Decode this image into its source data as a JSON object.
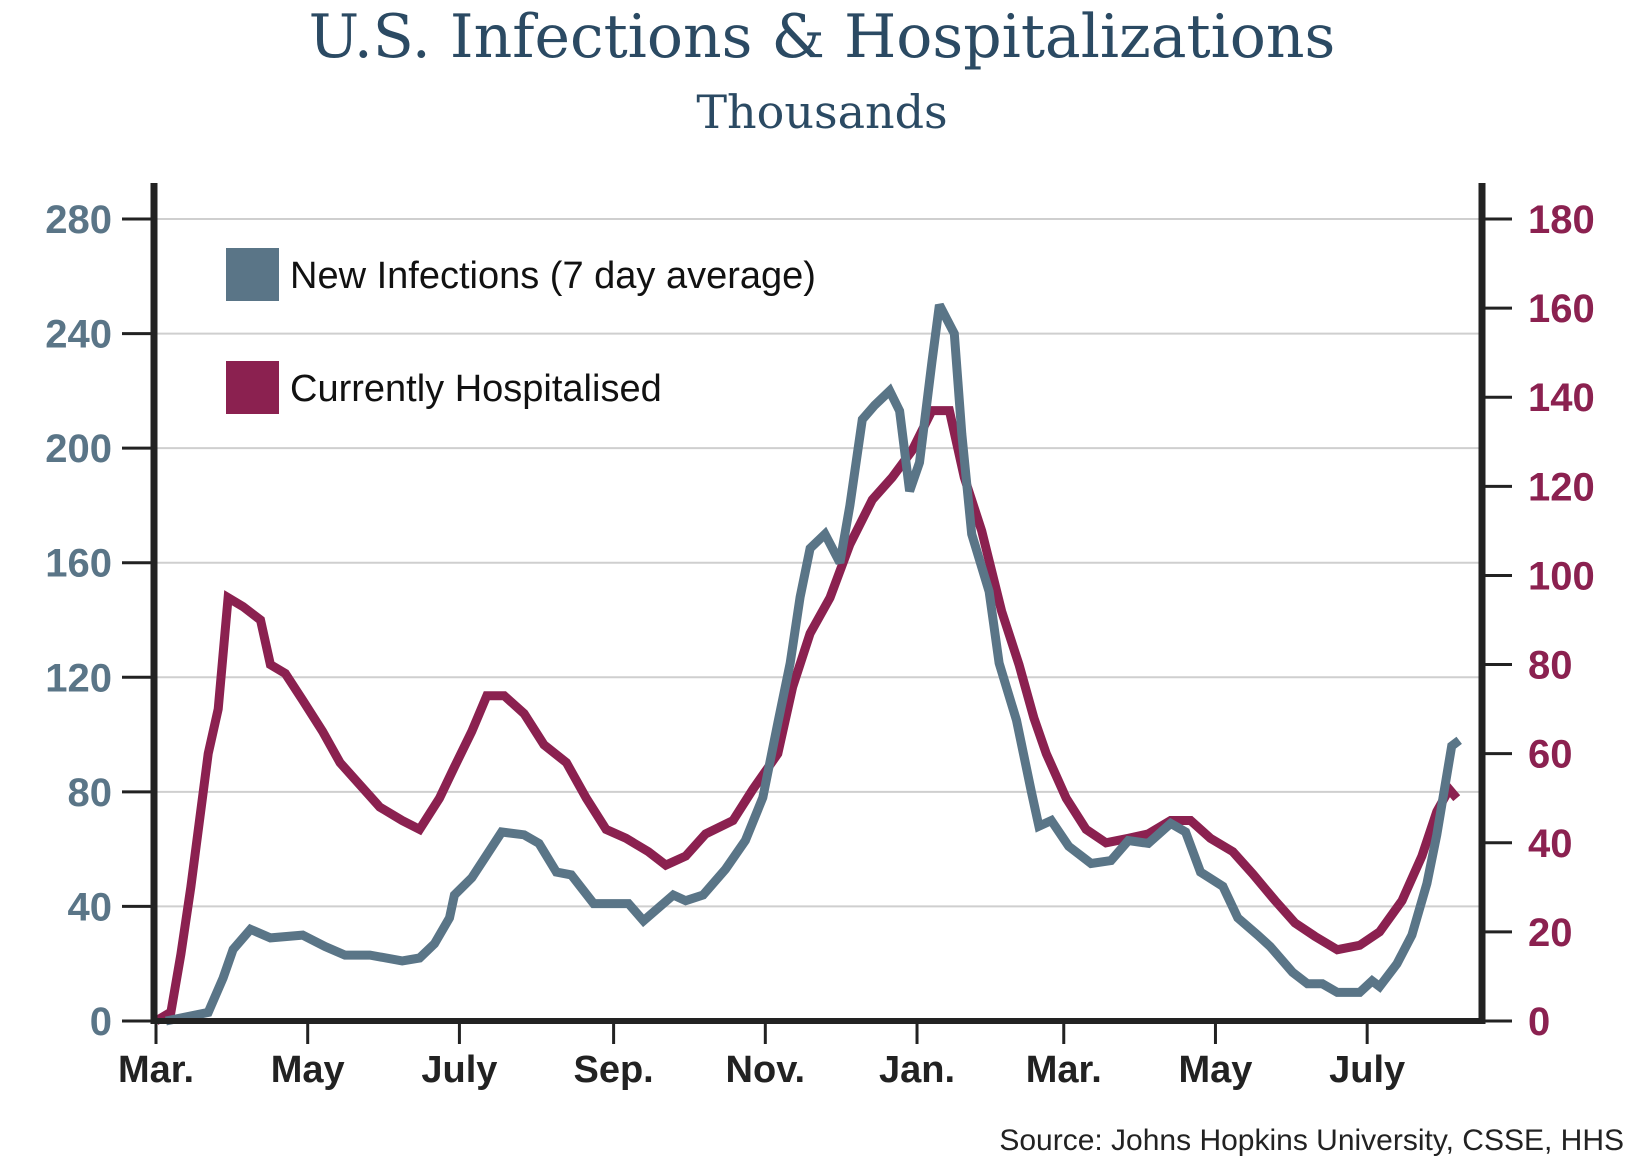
{
  "chart_data": {
    "type": "line",
    "title": "U.S. Infections & Hospitalizations",
    "subtitle": "Thousands",
    "source": "Source: Johns Hopkins University, CSSE, HHS",
    "x_ticks": [
      {
        "label": "Mar.",
        "date": "2020-03-01"
      },
      {
        "label": "May",
        "date": "2020-05-01"
      },
      {
        "label": "July",
        "date": "2020-07-01"
      },
      {
        "label": "Sep.",
        "date": "2020-09-01"
      },
      {
        "label": "Nov.",
        "date": "2020-11-01"
      },
      {
        "label": "Jan.",
        "date": "2021-01-01"
      },
      {
        "label": "Mar.",
        "date": "2021-03-01"
      },
      {
        "label": "May",
        "date": "2021-05-01"
      },
      {
        "label": "July",
        "date": "2021-07-01"
      }
    ],
    "y_left": {
      "ylim": [
        0,
        280
      ],
      "ticks": [
        "0",
        "40",
        "80",
        "120",
        "160",
        "200",
        "240",
        "280"
      ],
      "color": "#5a7587"
    },
    "y_right": {
      "ylim": [
        0,
        180
      ],
      "ticks": [
        "0",
        "20",
        "40",
        "60",
        "80",
        "100",
        "120",
        "140",
        "160",
        "180"
      ],
      "color": "#8b2150"
    },
    "grid": true,
    "legend_position": "top-left",
    "series": [
      {
        "name": "New Infections (7 day average)",
        "axis": "left",
        "color": "#5a7587",
        "points": [
          [
            "2020-03-05",
            0
          ],
          [
            "2020-03-22",
            3
          ],
          [
            "2020-03-28",
            15
          ],
          [
            "2020-04-01",
            25
          ],
          [
            "2020-04-08",
            32
          ],
          [
            "2020-04-16",
            29
          ],
          [
            "2020-04-29",
            30
          ],
          [
            "2020-05-08",
            26
          ],
          [
            "2020-05-16",
            23
          ],
          [
            "2020-05-26",
            23
          ],
          [
            "2020-06-08",
            21
          ],
          [
            "2020-06-15",
            22
          ],
          [
            "2020-06-21",
            27
          ],
          [
            "2020-06-27",
            36
          ],
          [
            "2020-06-29",
            44
          ],
          [
            "2020-07-06",
            50
          ],
          [
            "2020-07-12",
            58
          ],
          [
            "2020-07-18",
            66
          ],
          [
            "2020-07-27",
            65
          ],
          [
            "2020-08-02",
            62
          ],
          [
            "2020-08-09",
            52
          ],
          [
            "2020-08-15",
            51
          ],
          [
            "2020-08-24",
            41
          ],
          [
            "2020-09-07",
            41
          ],
          [
            "2020-09-13",
            35
          ],
          [
            "2020-09-25",
            44
          ],
          [
            "2020-09-30",
            42
          ],
          [
            "2020-10-07",
            44
          ],
          [
            "2020-10-16",
            53
          ],
          [
            "2020-10-24",
            63
          ],
          [
            "2020-10-31",
            78
          ],
          [
            "2020-11-06",
            104
          ],
          [
            "2020-11-11",
            125
          ],
          [
            "2020-11-15",
            148
          ],
          [
            "2020-11-19",
            165
          ],
          [
            "2020-11-25",
            170
          ],
          [
            "2020-12-01",
            160
          ],
          [
            "2020-12-05",
            180
          ],
          [
            "2020-12-10",
            210
          ],
          [
            "2020-12-15",
            215
          ],
          [
            "2020-12-21",
            220
          ],
          [
            "2020-12-25",
            213
          ],
          [
            "2020-12-29",
            185
          ],
          [
            "2021-01-02",
            195
          ],
          [
            "2021-01-07",
            230
          ],
          [
            "2021-01-10",
            250
          ],
          [
            "2021-01-16",
            240
          ],
          [
            "2021-01-19",
            205
          ],
          [
            "2021-01-23",
            170
          ],
          [
            "2021-01-30",
            150
          ],
          [
            "2021-02-03",
            125
          ],
          [
            "2021-02-10",
            105
          ],
          [
            "2021-02-16",
            80
          ],
          [
            "2021-02-19",
            68
          ],
          [
            "2021-02-24",
            70
          ],
          [
            "2021-03-03",
            61
          ],
          [
            "2021-03-12",
            55
          ],
          [
            "2021-03-20",
            56
          ],
          [
            "2021-03-27",
            63
          ],
          [
            "2021-04-04",
            62
          ],
          [
            "2021-04-13",
            69
          ],
          [
            "2021-04-19",
            66
          ],
          [
            "2021-04-25",
            52
          ],
          [
            "2021-05-04",
            47
          ],
          [
            "2021-05-10",
            36
          ],
          [
            "2021-05-18",
            30
          ],
          [
            "2021-05-23",
            26
          ],
          [
            "2021-06-01",
            17
          ],
          [
            "2021-06-07",
            13
          ],
          [
            "2021-06-13",
            13
          ],
          [
            "2021-06-19",
            10
          ],
          [
            "2021-06-28",
            10
          ],
          [
            "2021-07-03",
            14
          ],
          [
            "2021-07-06",
            12
          ],
          [
            "2021-07-13",
            20
          ],
          [
            "2021-07-19",
            30
          ],
          [
            "2021-07-25",
            48
          ],
          [
            "2021-07-29",
            65
          ],
          [
            "2021-08-04",
            96
          ],
          [
            "2021-08-07",
            98
          ]
        ]
      },
      {
        "name": "Currently Hospitalised",
        "axis": "right",
        "color": "#8b2150",
        "points": [
          [
            "2020-03-01",
            0
          ],
          [
            "2020-03-07",
            2
          ],
          [
            "2020-03-11",
            15
          ],
          [
            "2020-03-15",
            30
          ],
          [
            "2020-03-22",
            60
          ],
          [
            "2020-03-26",
            70
          ],
          [
            "2020-03-30",
            95
          ],
          [
            "2020-04-05",
            93
          ],
          [
            "2020-04-12",
            90
          ],
          [
            "2020-04-16",
            80
          ],
          [
            "2020-04-22",
            78
          ],
          [
            "2020-04-29",
            72
          ],
          [
            "2020-05-07",
            65
          ],
          [
            "2020-05-14",
            58
          ],
          [
            "2020-05-22",
            53
          ],
          [
            "2020-05-30",
            48
          ],
          [
            "2020-06-08",
            45
          ],
          [
            "2020-06-15",
            43
          ],
          [
            "2020-06-23",
            50
          ],
          [
            "2020-06-29",
            57
          ],
          [
            "2020-07-06",
            65
          ],
          [
            "2020-07-12",
            73
          ],
          [
            "2020-07-19",
            73
          ],
          [
            "2020-07-27",
            69
          ],
          [
            "2020-08-04",
            62
          ],
          [
            "2020-08-13",
            58
          ],
          [
            "2020-08-21",
            50
          ],
          [
            "2020-08-29",
            43
          ],
          [
            "2020-09-06",
            41
          ],
          [
            "2020-09-15",
            38
          ],
          [
            "2020-09-22",
            35
          ],
          [
            "2020-09-30",
            37
          ],
          [
            "2020-10-08",
            42
          ],
          [
            "2020-10-19",
            45
          ],
          [
            "2020-10-27",
            52
          ],
          [
            "2020-11-06",
            60
          ],
          [
            "2020-11-12",
            75
          ],
          [
            "2020-11-19",
            87
          ],
          [
            "2020-11-27",
            95
          ],
          [
            "2020-12-05",
            107
          ],
          [
            "2020-12-14",
            117
          ],
          [
            "2020-12-22",
            122
          ],
          [
            "2020-12-30",
            128
          ],
          [
            "2021-01-07",
            137
          ],
          [
            "2021-01-14",
            137
          ],
          [
            "2021-01-20",
            122
          ],
          [
            "2021-01-27",
            110
          ],
          [
            "2021-02-04",
            92
          ],
          [
            "2021-02-11",
            80
          ],
          [
            "2021-02-17",
            68
          ],
          [
            "2021-02-22",
            60
          ],
          [
            "2021-03-02",
            50
          ],
          [
            "2021-03-10",
            43
          ],
          [
            "2021-03-18",
            40
          ],
          [
            "2021-03-27",
            41
          ],
          [
            "2021-04-04",
            42
          ],
          [
            "2021-04-13",
            45
          ],
          [
            "2021-04-21",
            45
          ],
          [
            "2021-04-29",
            41
          ],
          [
            "2021-05-08",
            38
          ],
          [
            "2021-05-16",
            33
          ],
          [
            "2021-05-25",
            27
          ],
          [
            "2021-06-02",
            22
          ],
          [
            "2021-06-10",
            19
          ],
          [
            "2021-06-19",
            16
          ],
          [
            "2021-06-28",
            17
          ],
          [
            "2021-07-06",
            20
          ],
          [
            "2021-07-15",
            27
          ],
          [
            "2021-07-23",
            37
          ],
          [
            "2021-07-29",
            47
          ],
          [
            "2021-08-03",
            52
          ],
          [
            "2021-08-06",
            50
          ]
        ]
      }
    ]
  }
}
